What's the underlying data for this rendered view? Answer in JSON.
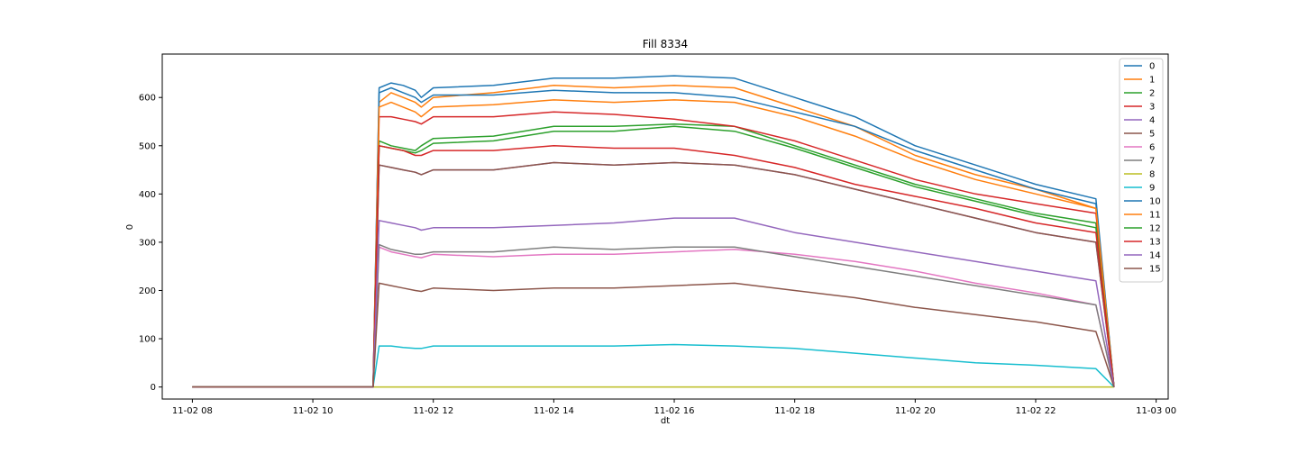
{
  "chart_data": {
    "type": "line",
    "title": "Fill 8334",
    "xlabel": "dt",
    "ylabel": "0",
    "x_ticks": [
      "11-02 08",
      "11-02 10",
      "11-02 12",
      "11-02 14",
      "11-02 16",
      "11-02 18",
      "11-02 20",
      "11-02 22",
      "11-03 00"
    ],
    "y_ticks": [
      0,
      100,
      200,
      300,
      400,
      500,
      600
    ],
    "xlim_hours": [
      7.5,
      24.2
    ],
    "ylim": [
      -25,
      690
    ],
    "legend_position": "right",
    "grid": false,
    "x_hours": [
      8.0,
      8.1,
      11.0,
      11.1,
      11.3,
      11.5,
      11.7,
      11.8,
      12.0,
      13.0,
      14.0,
      15.0,
      16.0,
      17.0,
      18.0,
      19.0,
      20.0,
      21.0,
      22.0,
      23.0,
      23.3
    ],
    "series": [
      {
        "name": "0",
        "color": "#1f77b4",
        "values": [
          0,
          0,
          0,
          620,
          630,
          625,
          615,
          600,
          620,
          625,
          640,
          640,
          645,
          640,
          600,
          560,
          500,
          460,
          420,
          390,
          0
        ]
      },
      {
        "name": "1",
        "color": "#ff7f0e",
        "values": [
          0,
          0,
          0,
          590,
          610,
          600,
          590,
          580,
          600,
          610,
          625,
          620,
          625,
          620,
          580,
          540,
          480,
          440,
          410,
          370,
          0
        ]
      },
      {
        "name": "2",
        "color": "#2ca02c",
        "values": [
          0,
          0,
          0,
          510,
          500,
          495,
          490,
          500,
          515,
          520,
          540,
          540,
          545,
          540,
          500,
          460,
          420,
          390,
          360,
          340,
          0
        ]
      },
      {
        "name": "3",
        "color": "#d62728",
        "values": [
          0,
          0,
          0,
          560,
          560,
          555,
          550,
          545,
          560,
          560,
          570,
          565,
          555,
          540,
          510,
          470,
          430,
          400,
          380,
          360,
          0
        ]
      },
      {
        "name": "4",
        "color": "#9467bd",
        "values": [
          0,
          0,
          0,
          460,
          455,
          450,
          445,
          440,
          450,
          450,
          465,
          460,
          465,
          460,
          440,
          410,
          380,
          350,
          320,
          300,
          0
        ]
      },
      {
        "name": "5",
        "color": "#8c564b",
        "values": [
          0,
          0,
          0,
          460,
          455,
          450,
          445,
          440,
          450,
          450,
          465,
          460,
          465,
          460,
          440,
          410,
          380,
          350,
          320,
          300,
          0
        ]
      },
      {
        "name": "6",
        "color": "#e377c2",
        "values": [
          0,
          0,
          0,
          290,
          280,
          275,
          270,
          268,
          275,
          270,
          275,
          275,
          280,
          285,
          275,
          260,
          240,
          215,
          195,
          170,
          0
        ]
      },
      {
        "name": "7",
        "color": "#7f7f7f",
        "values": [
          0,
          0,
          0,
          295,
          285,
          280,
          275,
          275,
          280,
          280,
          290,
          285,
          290,
          290,
          270,
          250,
          230,
          210,
          190,
          170,
          0
        ]
      },
      {
        "name": "8",
        "color": "#bcbd22",
        "values": [
          0,
          0,
          0,
          0,
          0,
          0,
          0,
          0,
          0,
          0,
          0,
          0,
          0,
          0,
          0,
          0,
          0,
          0,
          0,
          0,
          0
        ]
      },
      {
        "name": "9",
        "color": "#17becf",
        "values": [
          0,
          0,
          0,
          85,
          85,
          82,
          80,
          80,
          85,
          85,
          85,
          85,
          88,
          85,
          80,
          70,
          60,
          50,
          45,
          38,
          0
        ]
      },
      {
        "name": "10",
        "color": "#1f77b4",
        "values": [
          0,
          0,
          0,
          610,
          620,
          610,
          600,
          590,
          605,
          605,
          615,
          610,
          610,
          600,
          570,
          540,
          490,
          450,
          410,
          380,
          0
        ]
      },
      {
        "name": "11",
        "color": "#ff7f0e",
        "values": [
          0,
          0,
          0,
          580,
          590,
          580,
          570,
          560,
          580,
          585,
          595,
          590,
          595,
          590,
          560,
          520,
          470,
          430,
          400,
          370,
          0
        ]
      },
      {
        "name": "12",
        "color": "#2ca02c",
        "values": [
          0,
          0,
          0,
          500,
          495,
          490,
          485,
          490,
          505,
          510,
          530,
          530,
          540,
          530,
          495,
          455,
          415,
          385,
          355,
          330,
          0
        ]
      },
      {
        "name": "13",
        "color": "#d62728",
        "values": [
          0,
          0,
          0,
          500,
          495,
          490,
          480,
          480,
          490,
          490,
          500,
          495,
          495,
          480,
          455,
          420,
          395,
          370,
          340,
          320,
          0
        ]
      },
      {
        "name": "14",
        "color": "#9467bd",
        "values": [
          0,
          0,
          0,
          345,
          340,
          335,
          330,
          325,
          330,
          330,
          335,
          340,
          350,
          350,
          320,
          300,
          280,
          260,
          240,
          220,
          0
        ]
      },
      {
        "name": "15",
        "color": "#8c564b",
        "values": [
          0,
          0,
          0,
          215,
          210,
          205,
          200,
          198,
          205,
          200,
          205,
          205,
          210,
          215,
          200,
          185,
          165,
          150,
          135,
          115,
          0
        ]
      }
    ]
  }
}
